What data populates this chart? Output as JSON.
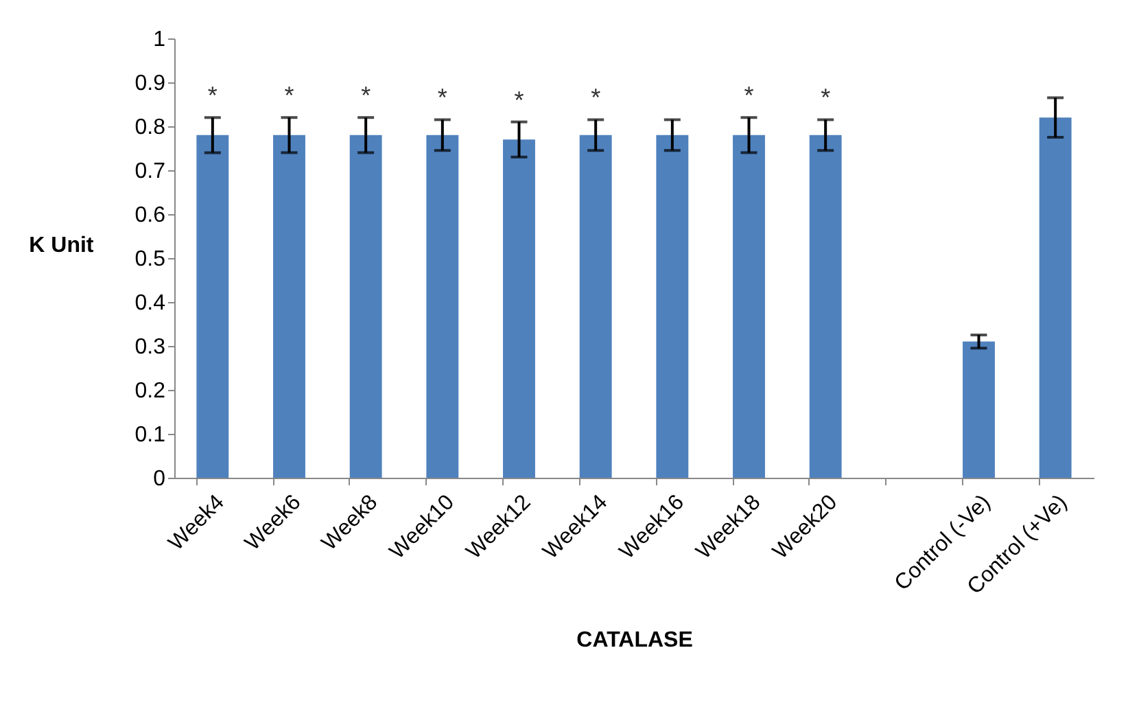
{
  "chart_data": {
    "type": "bar",
    "xlabel": "CATALASE",
    "ylabel": "K Unit",
    "categories": [
      "Week4",
      "Week6",
      "Week8",
      "Week10",
      "Week12",
      "Week14",
      "Week16",
      "Week18",
      "Week20",
      null,
      "Control (-Ve)",
      "Control (+Ve)"
    ],
    "values": [
      0.78,
      0.78,
      0.78,
      0.78,
      0.77,
      0.78,
      0.78,
      0.78,
      0.78,
      null,
      0.31,
      0.82
    ],
    "errors": [
      0.04,
      0.04,
      0.04,
      0.035,
      0.04,
      0.035,
      0.035,
      0.04,
      0.035,
      null,
      0.015,
      0.045
    ],
    "color": "#4f81bd",
    "ylim": [
      0,
      1
    ],
    "yticks": [
      0,
      0.1,
      0.2,
      0.3,
      0.4,
      0.5,
      0.6,
      0.7,
      0.8,
      0.9,
      1
    ],
    "value_labels": [
      "*",
      "*",
      "*",
      "*",
      "*",
      "*",
      null,
      "*",
      "*",
      null,
      null,
      null
    ],
    "grid": false
  }
}
